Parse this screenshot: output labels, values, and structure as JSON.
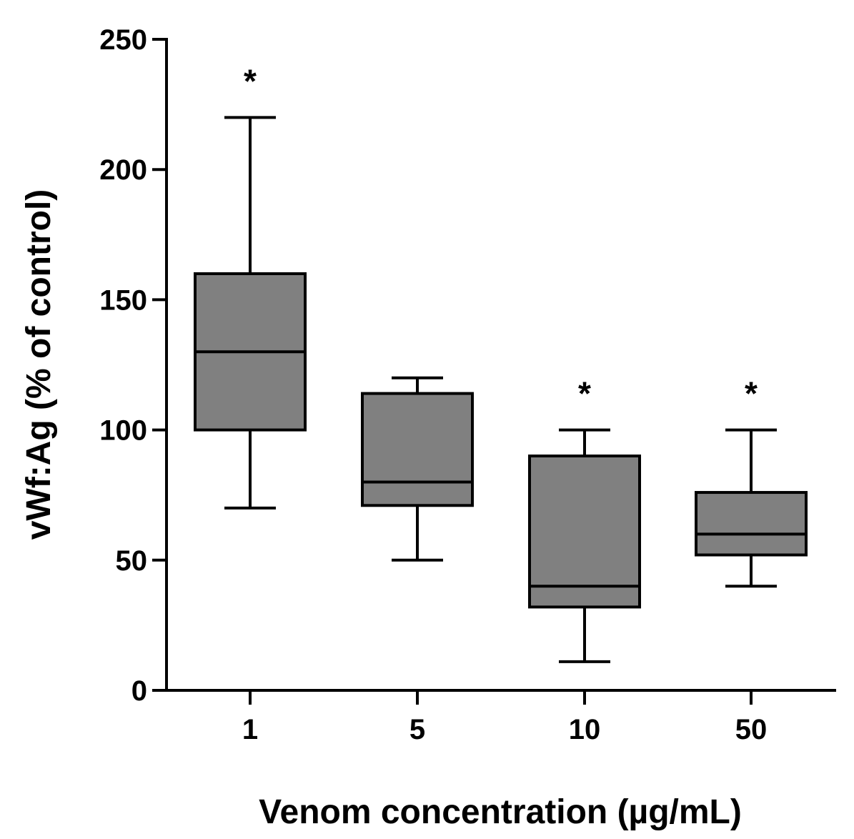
{
  "chart_data": {
    "type": "box",
    "categories": [
      "1",
      "5",
      "10",
      "50"
    ],
    "boxes": [
      {
        "category": "1",
        "whisker_low": 70,
        "q1": 100,
        "median": 130,
        "q3": 160,
        "whisker_high": 220,
        "annotation": "*"
      },
      {
        "category": "5",
        "whisker_low": 50,
        "q1": 71,
        "median": 80,
        "q3": 114,
        "whisker_high": 120,
        "annotation": ""
      },
      {
        "category": "10",
        "whisker_low": 11,
        "q1": 32,
        "median": 40,
        "q3": 90,
        "whisker_high": 100,
        "annotation": "*"
      },
      {
        "category": "50",
        "whisker_low": 40,
        "q1": 52,
        "median": 60,
        "q3": 76,
        "whisker_high": 100,
        "annotation": "*"
      }
    ],
    "xlabel": "Venom concentration (µg/mL)",
    "ylabel": "vWf:Ag (% of control)",
    "ylim": [
      0,
      250
    ],
    "yticks": [
      0,
      50,
      100,
      150,
      200,
      250
    ],
    "grid": false,
    "box_fill": "#808080",
    "line_color": "#000000"
  }
}
